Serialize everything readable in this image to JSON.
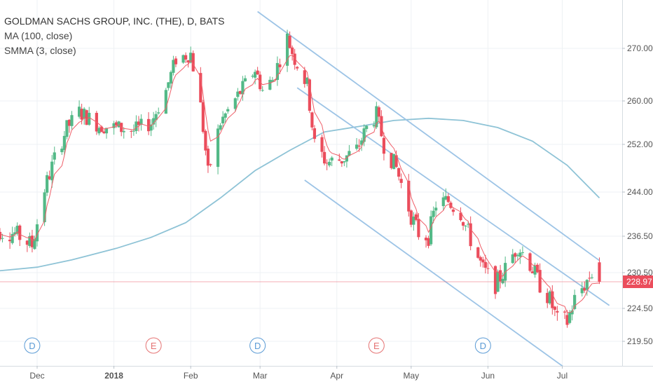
{
  "chart_data": {
    "type": "candlestick",
    "title": "GOLDMAN SACHS GROUP, INC. (THE), D, BATS",
    "indicators": [
      "MA (100, close)",
      "SMMA (3, close)"
    ],
    "price_axis": {
      "ticks": [
        270.0,
        260.0,
        252.0,
        244.0,
        236.5,
        230.5,
        224.5,
        219.5
      ],
      "tick_labels": [
        "270.00",
        "260.00",
        "252.00",
        "244.00",
        "236.50",
        "230.50",
        "224.50",
        "219.50"
      ]
    },
    "time_axis": {
      "labels": [
        "Dec",
        "2018",
        "Feb",
        "Mar",
        "Apr",
        "May",
        "Jun",
        "Jul"
      ]
    },
    "last_price": {
      "value": 228.97,
      "label": "228.97"
    },
    "events": [
      {
        "letter": "D",
        "type": "dividend",
        "date": "Nov 29"
      },
      {
        "letter": "E",
        "type": "earnings",
        "date": "Jan 17"
      },
      {
        "letter": "D",
        "type": "dividend",
        "date": "Feb 28"
      },
      {
        "letter": "E",
        "type": "earnings",
        "date": "Apr 17"
      },
      {
        "letter": "D",
        "type": "dividend",
        "date": "May 30"
      }
    ],
    "channel": [
      {
        "name": "upper",
        "from": [
          "Feb 28",
          277.0
        ],
        "to": [
          "Jul 16",
          232.5
        ]
      },
      {
        "name": "middle",
        "from": [
          "Mar 16",
          262.5
        ],
        "to": [
          "Jul 20",
          225.0
        ]
      },
      {
        "name": "lower",
        "from": [
          "Mar 19",
          246.0
        ],
        "to": [
          "Jul 2",
          215.5
        ]
      }
    ],
    "ma100": [
      [
        "Nov 13",
        230.7
      ],
      [
        "Dec 1",
        231.4
      ],
      [
        "Dec 15",
        232.6
      ],
      [
        "Jan 2",
        234.5
      ],
      [
        "Jan 16",
        236.3
      ],
      [
        "Jan 30",
        238.8
      ],
      [
        "Feb 13",
        243.0
      ],
      [
        "Feb 27",
        247.6
      ],
      [
        "Mar 13",
        251.0
      ],
      [
        "Mar 27",
        254.3
      ],
      [
        "Apr 10",
        255.3
      ],
      [
        "Apr 24",
        256.4
      ],
      [
        "May 8",
        256.8
      ],
      [
        "May 22",
        256.4
      ],
      [
        "Jun 5",
        255.1
      ],
      [
        "Jun 19",
        252.6
      ],
      [
        "Jul 3",
        248.5
      ],
      [
        "Jul 16",
        243.0
      ]
    ],
    "colors": {
      "up": "#53b987",
      "down": "#eb4d5c",
      "ma": "#8ec3d6",
      "smma": "#ef5e68",
      "channel": "#9dc4e6",
      "dividend": "#5b9bd5",
      "earnings": "#e57373",
      "price_tag": "#eb4d5c"
    }
  }
}
